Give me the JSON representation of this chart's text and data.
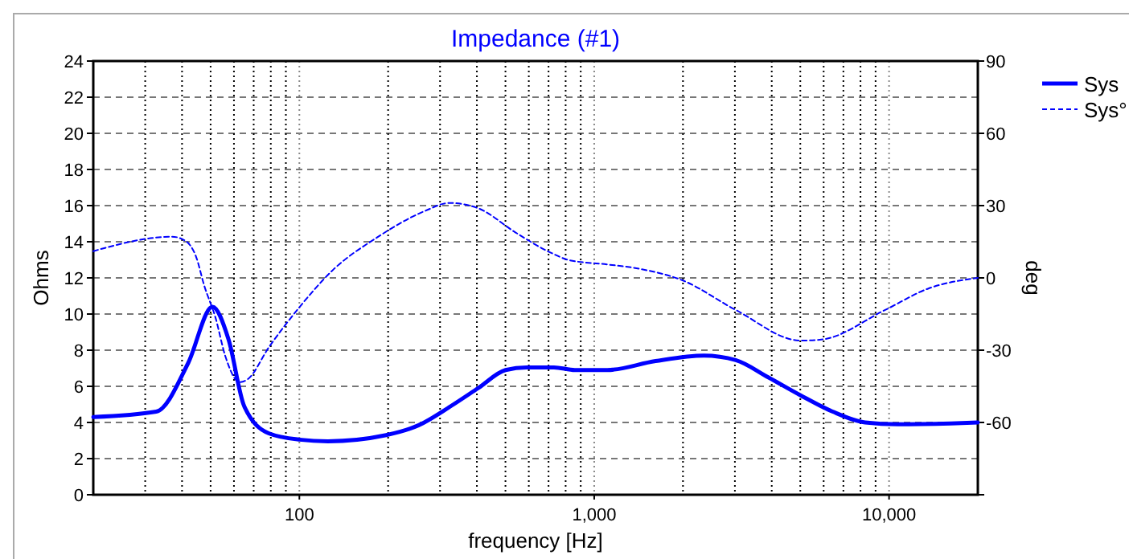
{
  "chart_data": {
    "type": "line",
    "title": "Impedance (#1)",
    "xlabel": "frequency [Hz]",
    "ylabel": "Ohms",
    "y2label": "deg",
    "log": "x",
    "grid": true,
    "legend": "top right",
    "xlim": [
      20,
      20000
    ],
    "xticks": [
      {
        "value": 100,
        "label": "100"
      },
      {
        "value": 1000,
        "label": "1,000"
      },
      {
        "value": 10000,
        "label": "10,000"
      }
    ],
    "ylim": [
      0,
      24
    ],
    "yticks": [
      0,
      2,
      4,
      6,
      8,
      10,
      12,
      14,
      16,
      18,
      20,
      22,
      24
    ],
    "y2lim": [
      -90,
      90
    ],
    "y2ticks": [
      {
        "value": -90,
        "label": null
      },
      -60,
      -30,
      0,
      30,
      60,
      90
    ],
    "series": [
      {
        "name": "Sys",
        "color": "#0000ff",
        "line_style": "solid",
        "x": [
          20,
          32.7,
          42,
          50.7,
          57.5,
          65,
          78.7,
          100,
          125,
          197,
          254,
          326,
          404,
          500,
          590,
          730,
          860,
          1106,
          1615,
          2355,
          3020,
          3890,
          5010,
          6440,
          8300,
          10700,
          16200,
          20000
        ],
        "values": [
          4.3,
          4.6,
          7.3,
          10.4,
          8.6,
          4.9,
          3.4,
          3.05,
          2.96,
          3.3,
          3.85,
          4.9,
          5.9,
          6.9,
          7.05,
          7.05,
          6.9,
          6.9,
          7.4,
          7.7,
          7.45,
          6.5,
          5.5,
          4.6,
          4.0,
          3.9,
          3.95,
          4.0
        ]
      },
      {
        "name": "Sys°",
        "color": "#0000ff",
        "line_style": "dashed",
        "axis": "y2",
        "x": [
          20,
          37,
          40.9,
          44.6,
          47.6,
          52,
          56,
          62.8,
          66.9,
          78.7,
          100,
          130,
          183,
          267,
          322,
          404,
          540,
          695,
          827,
          1106,
          1420,
          2000,
          3020,
          5010,
          5890,
          9700,
          13600,
          20000
        ],
        "values": [
          11.1,
          17.1,
          15.5,
          8.9,
          -3.3,
          -16.7,
          -32.2,
          -43.3,
          -42,
          -28.9,
          -12.2,
          3.3,
          16.7,
          27.8,
          31.1,
          28.9,
          18.9,
          11.1,
          7.3,
          5.6,
          3.8,
          -1.1,
          -13.3,
          -26,
          -25.6,
          -13.3,
          -4.4,
          0
        ]
      }
    ]
  }
}
